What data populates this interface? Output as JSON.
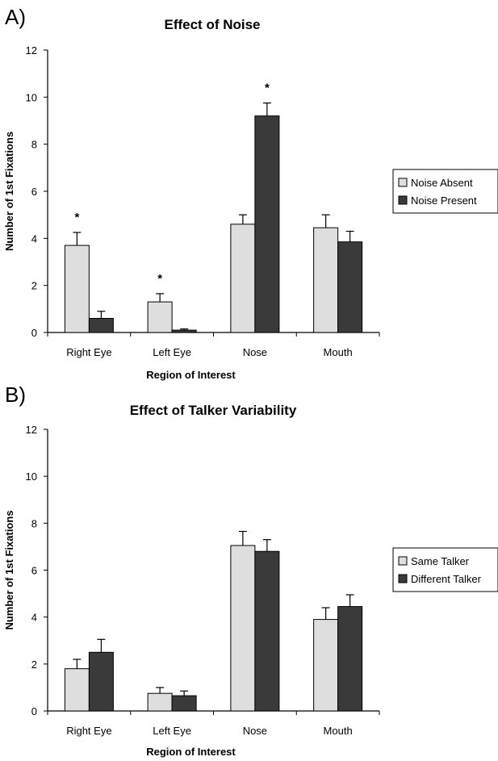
{
  "chart_data": [
    {
      "type": "bar",
      "panel_label": "A)",
      "title": "Effect of Noise",
      "xlabel": "Region of Interest",
      "ylabel": "Number of 1st Fixations",
      "categories": [
        "Right Eye",
        "Left Eye",
        "Nose",
        "Mouth"
      ],
      "ylim": [
        0,
        12
      ],
      "yticks": [
        0,
        2,
        4,
        6,
        8,
        10,
        12
      ],
      "grid": false,
      "legend_position": "right",
      "series": [
        {
          "name": "Noise Absent",
          "color": "#dedede",
          "values": [
            3.7,
            1.3,
            4.6,
            4.45
          ],
          "errors": [
            0.55,
            0.35,
            0.4,
            0.55
          ]
        },
        {
          "name": "Noise Present",
          "color": "#3a3a3a",
          "values": [
            0.6,
            0.1,
            9.2,
            3.85
          ],
          "errors": [
            0.3,
            0.05,
            0.55,
            0.45
          ]
        }
      ],
      "significance": [
        {
          "category": "Right Eye",
          "label": "*"
        },
        {
          "category": "Left Eye",
          "label": "*"
        },
        {
          "category": "Nose",
          "label": "*"
        }
      ]
    },
    {
      "type": "bar",
      "panel_label": "B)",
      "title": "Effect of Talker Variability",
      "xlabel": "Region of Interest",
      "ylabel": "Number of 1st Fixations",
      "categories": [
        "Right Eye",
        "Left Eye",
        "Nose",
        "Mouth"
      ],
      "ylim": [
        0,
        12
      ],
      "yticks": [
        0,
        2,
        4,
        6,
        8,
        10,
        12
      ],
      "grid": false,
      "legend_position": "right",
      "series": [
        {
          "name": "Same Talker",
          "color": "#dedede",
          "values": [
            1.8,
            0.75,
            7.05,
            3.9
          ],
          "errors": [
            0.4,
            0.25,
            0.6,
            0.5
          ]
        },
        {
          "name": "Different Talker",
          "color": "#3a3a3a",
          "values": [
            2.5,
            0.65,
            6.8,
            4.45
          ],
          "errors": [
            0.55,
            0.2,
            0.5,
            0.5
          ]
        }
      ],
      "significance": []
    }
  ]
}
